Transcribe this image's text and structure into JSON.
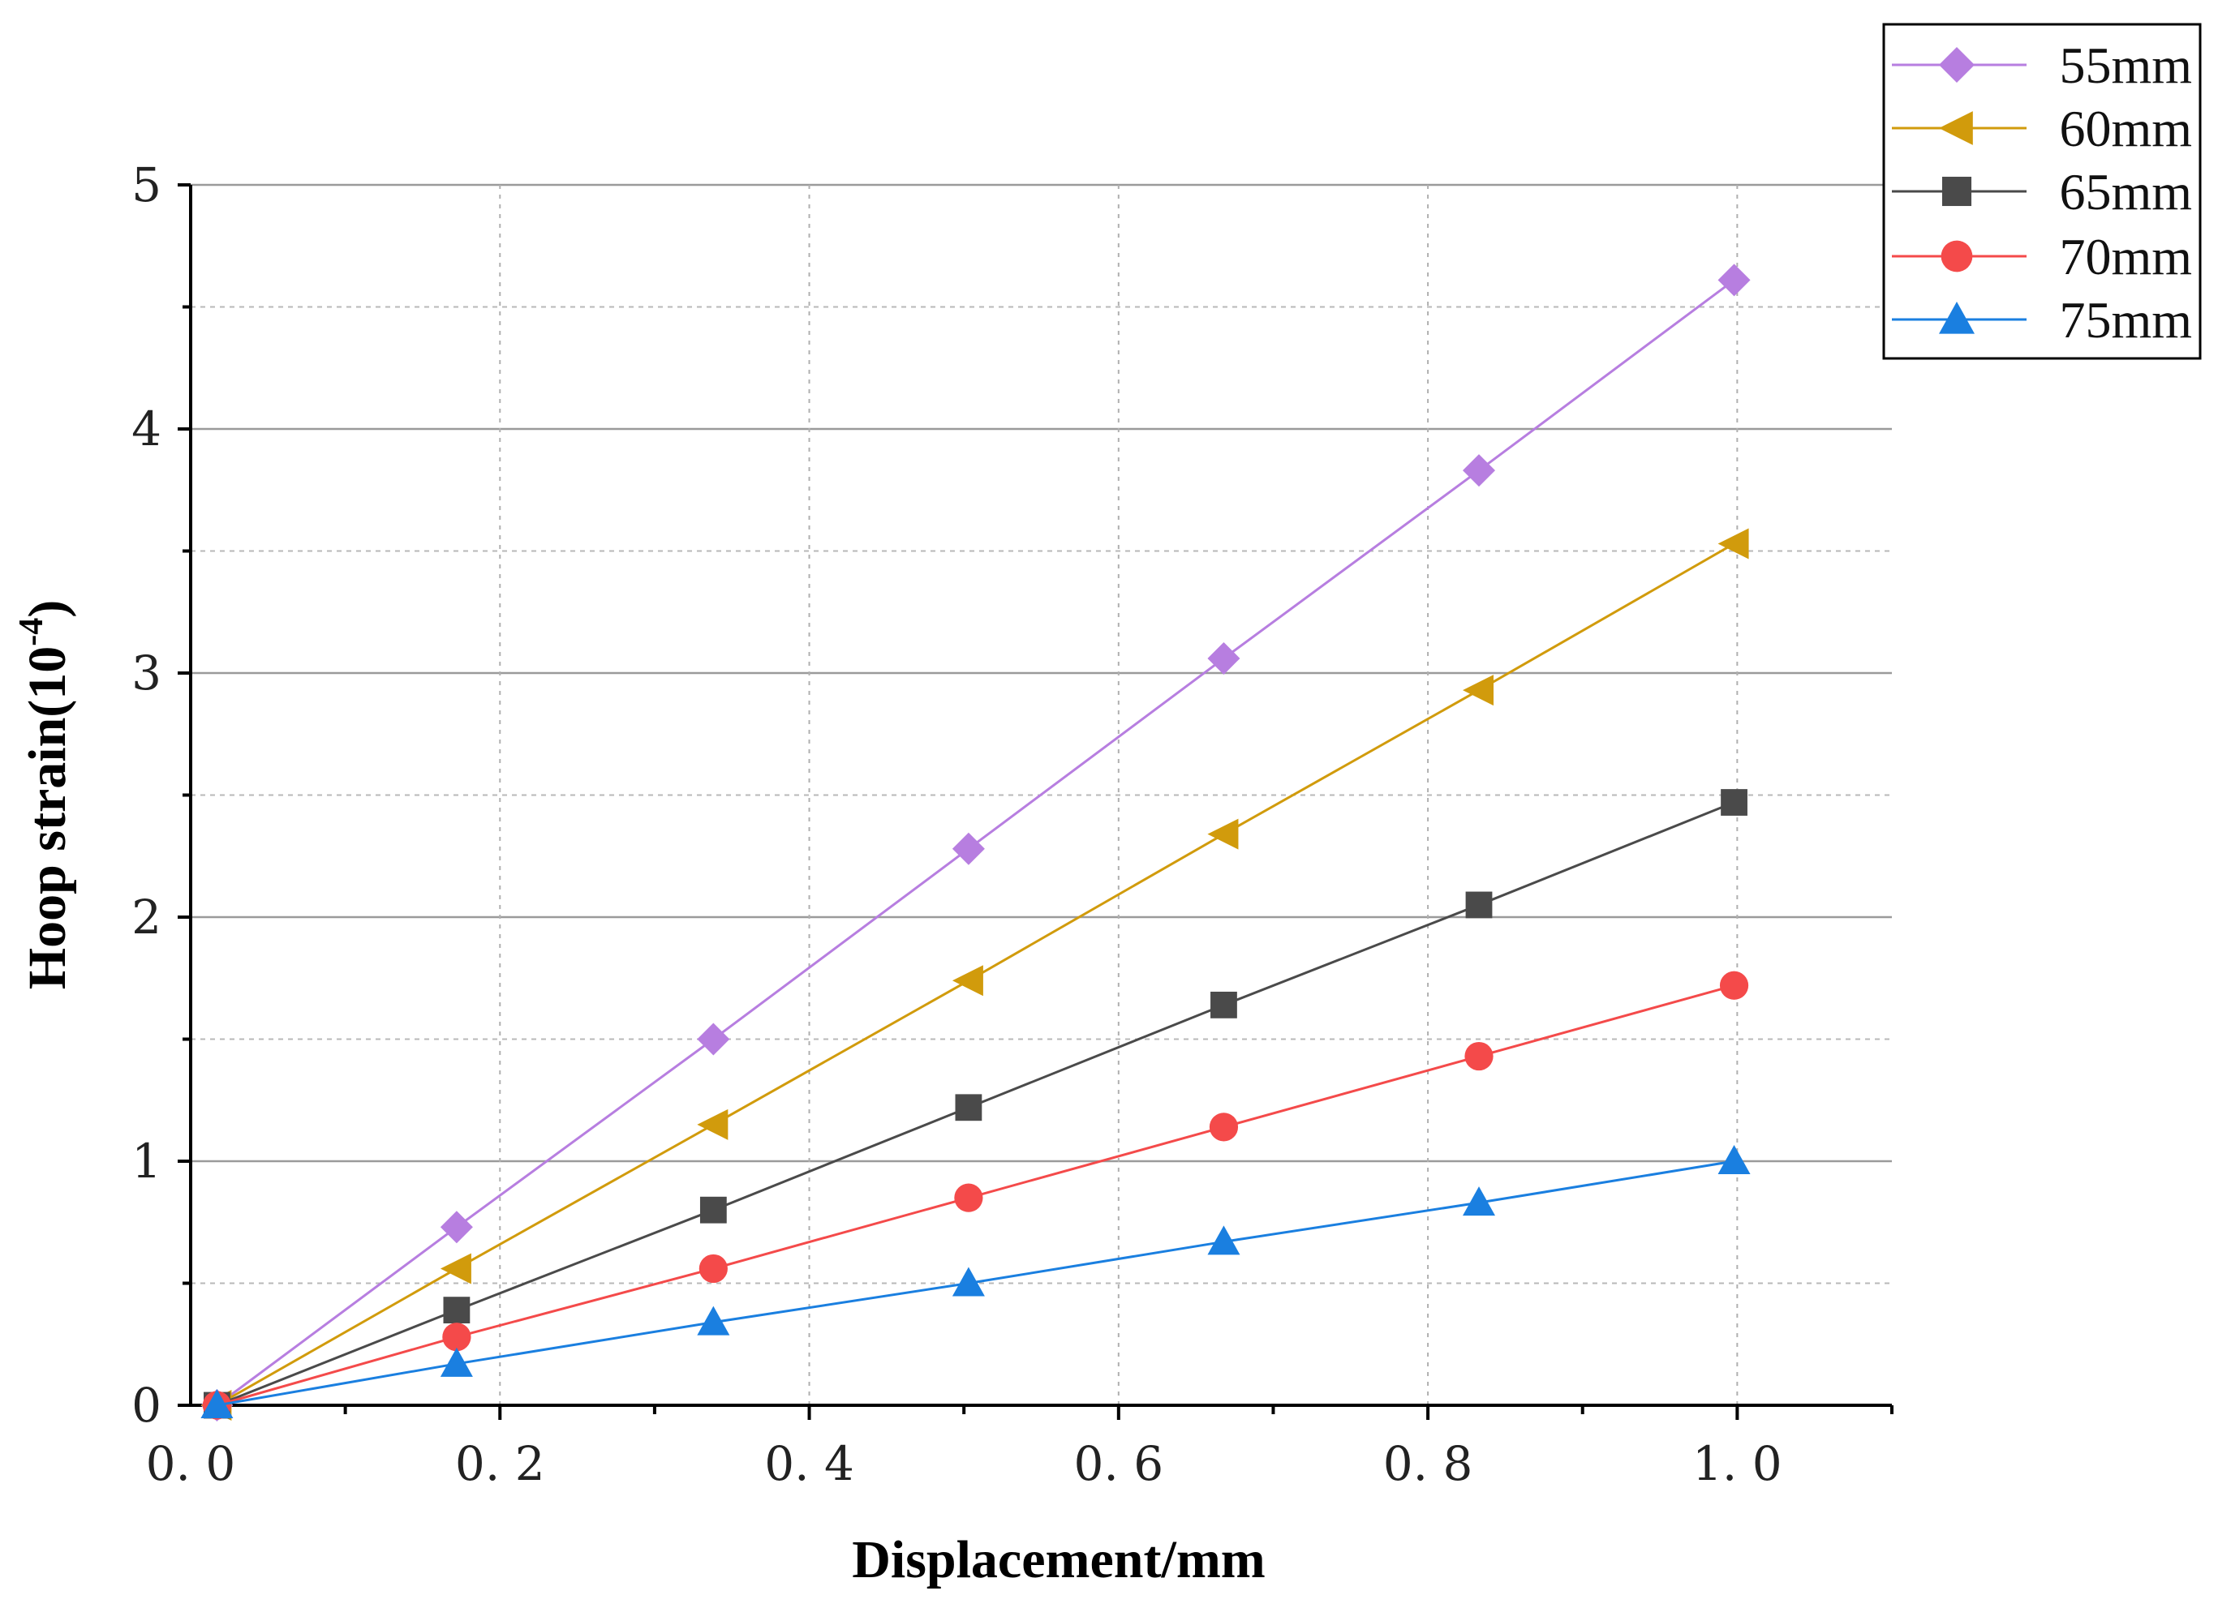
{
  "chart_data": {
    "type": "line",
    "title": "",
    "xlabel": "Displacement/mm",
    "ylabel": "Hoop strain(10",
    "ylabel_exponent": "-4",
    "ylabel_close": ")",
    "xlim": [
      0,
      1.1
    ],
    "ylim": [
      0,
      5
    ],
    "x_ticks": [
      {
        "value": 0.0,
        "label": "0. 0"
      },
      {
        "value": 0.2,
        "label": "0. 2"
      },
      {
        "value": 0.4,
        "label": "0. 4"
      },
      {
        "value": 0.6,
        "label": "0. 6"
      },
      {
        "value": 0.8,
        "label": "0. 8"
      },
      {
        "value": 1.0,
        "label": "1. 0"
      }
    ],
    "y_ticks": [
      {
        "value": 0,
        "label": "0"
      },
      {
        "value": 1,
        "label": "1"
      },
      {
        "value": 2,
        "label": "2"
      },
      {
        "value": 3,
        "label": "3"
      },
      {
        "value": 4,
        "label": "4"
      },
      {
        "value": 5,
        "label": "5"
      }
    ],
    "grid": true,
    "legend_position": "top-right",
    "x": [
      0.017,
      0.172,
      0.338,
      0.503,
      0.668,
      0.833,
      0.998
    ],
    "series": [
      {
        "name": "55mm",
        "marker": "diamond",
        "color": "#b77ee0",
        "values": [
          0,
          0.73,
          1.5,
          2.28,
          3.06,
          3.83,
          4.61
        ]
      },
      {
        "name": "60mm",
        "marker": "triangle-left",
        "color": "#d19b0c",
        "values": [
          0,
          0.56,
          1.15,
          1.74,
          2.34,
          2.93,
          3.53
        ]
      },
      {
        "name": "65mm",
        "marker": "square",
        "color": "#4a4a4a",
        "values": [
          0,
          0.39,
          0.8,
          1.22,
          1.64,
          2.05,
          2.47
        ]
      },
      {
        "name": "70mm",
        "marker": "circle",
        "color": "#f44a4a",
        "values": [
          0,
          0.28,
          0.56,
          0.85,
          1.14,
          1.43,
          1.72
        ]
      },
      {
        "name": "75mm",
        "marker": "triangle-up",
        "color": "#1a7fe0",
        "values": [
          0,
          0.17,
          0.34,
          0.5,
          0.67,
          0.83,
          1.0
        ]
      }
    ]
  }
}
